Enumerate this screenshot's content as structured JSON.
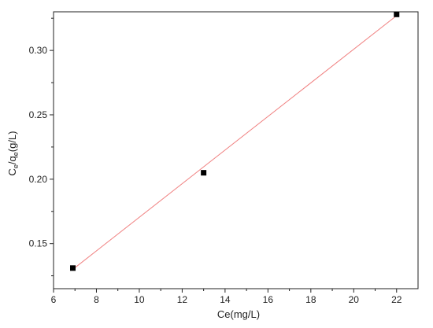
{
  "chart_data": {
    "type": "scatter",
    "xlabel": "Ce(mg/L)",
    "ylabel": {
      "c": "C",
      "c_sub": "e",
      "slash_q": "/q",
      "q_sub": "e",
      "unit": "(g/L)"
    },
    "xlim": [
      6,
      23
    ],
    "ylim": [
      0.115,
      0.33
    ],
    "x_ticks": [
      6,
      8,
      10,
      12,
      14,
      16,
      18,
      20,
      22
    ],
    "y_ticks": [
      0.15,
      0.2,
      0.25,
      0.3
    ],
    "y_tick_labels": [
      "0.15",
      "0.20",
      "0.25",
      "0.30"
    ],
    "points": [
      {
        "x": 6.9,
        "y": 0.131
      },
      {
        "x": 13.0,
        "y": 0.205
      },
      {
        "x": 22.0,
        "y": 0.328
      }
    ],
    "fit_line": {
      "x1": 6.9,
      "y1": 0.13,
      "x2": 22.0,
      "y2": 0.327
    },
    "colors": {
      "points": "#000000",
      "fit_line": "#f08080",
      "axes": "#222222"
    },
    "grid": false,
    "legend": "none"
  }
}
